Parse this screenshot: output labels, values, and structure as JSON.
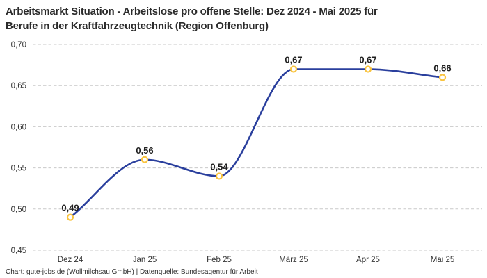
{
  "title": {
    "line1": "Arbeitsmarkt Situation - Arbeitslose pro offene Stelle: Dez 2024 - Mai 2025 für",
    "line2": "Berufe in der Kraftfahrzeugtechnik (Region Offenburg)"
  },
  "footer": {
    "text": "Chart: gute-jobs.de (Wollmilchsau GmbH) | Datenquelle: Bundesagentur für Arbeit"
  },
  "colors": {
    "line": "#2a3f9d",
    "marker_ring": "#f9c440",
    "marker_fill": "#ffffff",
    "grid": "#c9c9c9",
    "axis_text": "#333333",
    "point_label_text": "#1f1f1f"
  },
  "chart_data": {
    "type": "line",
    "title": "Arbeitsmarkt Situation - Arbeitslose pro offene Stelle: Dez 2024 - Mai 2025 für Berufe in der Kraftfahrzeugtechnik (Region Offenburg)",
    "categories": [
      "Dez 24",
      "Jan 25",
      "Feb 25",
      "März 25",
      "Apr 25",
      "Mai 25"
    ],
    "values": [
      0.49,
      0.56,
      0.54,
      0.67,
      0.67,
      0.66
    ],
    "point_labels": [
      "0,49",
      "0,56",
      "0,54",
      "0,67",
      "0,67",
      "0,66"
    ],
    "y_ticks": [
      0.45,
      0.5,
      0.55,
      0.6,
      0.65,
      0.7
    ],
    "y_tick_labels": [
      "0,45",
      "0,50",
      "0,55",
      "0,60",
      "0,65",
      "0,70"
    ],
    "ylim": [
      0.45,
      0.7
    ],
    "xlabel": "",
    "ylabel": "",
    "grid": "horizontal-dashed",
    "legend": "none",
    "curve": "monotone-smooth"
  }
}
